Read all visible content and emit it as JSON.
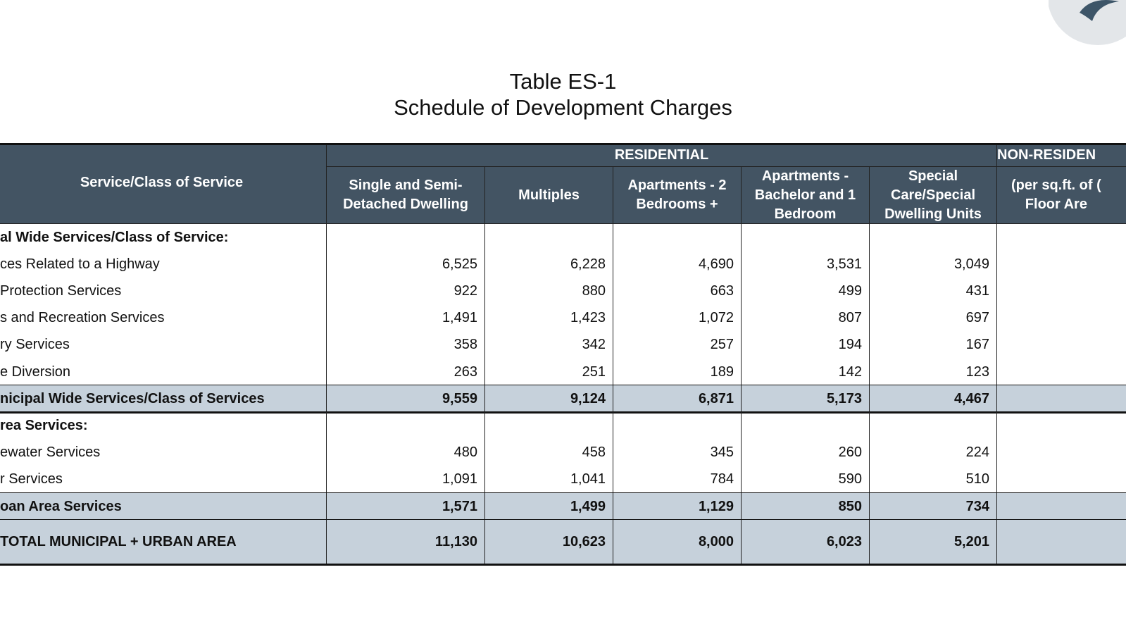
{
  "title": {
    "line1": "Table ES-1",
    "line2": "Schedule of Development Charges"
  },
  "table": {
    "header": {
      "service": "Service/Class of Service",
      "residential": "RESIDENTIAL",
      "non_residential": "NON-RESIDEN",
      "columns": [
        "Single and Semi-\nDetached Dwelling",
        "Multiples",
        "Apartments - 2\nBedrooms +",
        "Apartments -\nBachelor and 1\nBedroom",
        "Special\nCare/Special\nDwelling Units"
      ],
      "non_residential_unit": "(per sq.ft. of (\nFloor Are"
    },
    "sections": [
      {
        "heading": "al Wide Services/Class of Service:",
        "items": [
          {
            "label": "ces Related to a Highway",
            "values": [
              "6,525",
              "6,228",
              "4,690",
              "3,531",
              "3,049"
            ]
          },
          {
            "label": "Protection Services",
            "values": [
              "922",
              "880",
              "663",
              "499",
              "431"
            ]
          },
          {
            "label": "s and Recreation Services",
            "values": [
              "1,491",
              "1,423",
              "1,072",
              "807",
              "697"
            ]
          },
          {
            "label": "ry Services",
            "values": [
              "358",
              "342",
              "257",
              "194",
              "167"
            ]
          },
          {
            "label": "e Diversion",
            "values": [
              "263",
              "251",
              "189",
              "142",
              "123"
            ]
          }
        ],
        "subtotal": {
          "label": "nicipal Wide Services/Class of Services",
          "values": [
            "9,559",
            "9,124",
            "6,871",
            "5,173",
            "4,467"
          ]
        }
      },
      {
        "heading": "rea Services:",
        "items": [
          {
            "label": "ewater Services",
            "values": [
              "480",
              "458",
              "345",
              "260",
              "224"
            ]
          },
          {
            "label": "r Services",
            "values": [
              "1,091",
              "1,041",
              "784",
              "590",
              "510"
            ]
          }
        ],
        "subtotal": {
          "label": "oan Area Services",
          "values": [
            "1,571",
            "1,499",
            "1,129",
            "850",
            "734"
          ]
        }
      }
    ],
    "grand_total": {
      "label": "TOTAL MUNICIPAL + URBAN AREA",
      "values": [
        "11,130",
        "10,623",
        "8,000",
        "6,023",
        "5,201"
      ]
    }
  }
}
